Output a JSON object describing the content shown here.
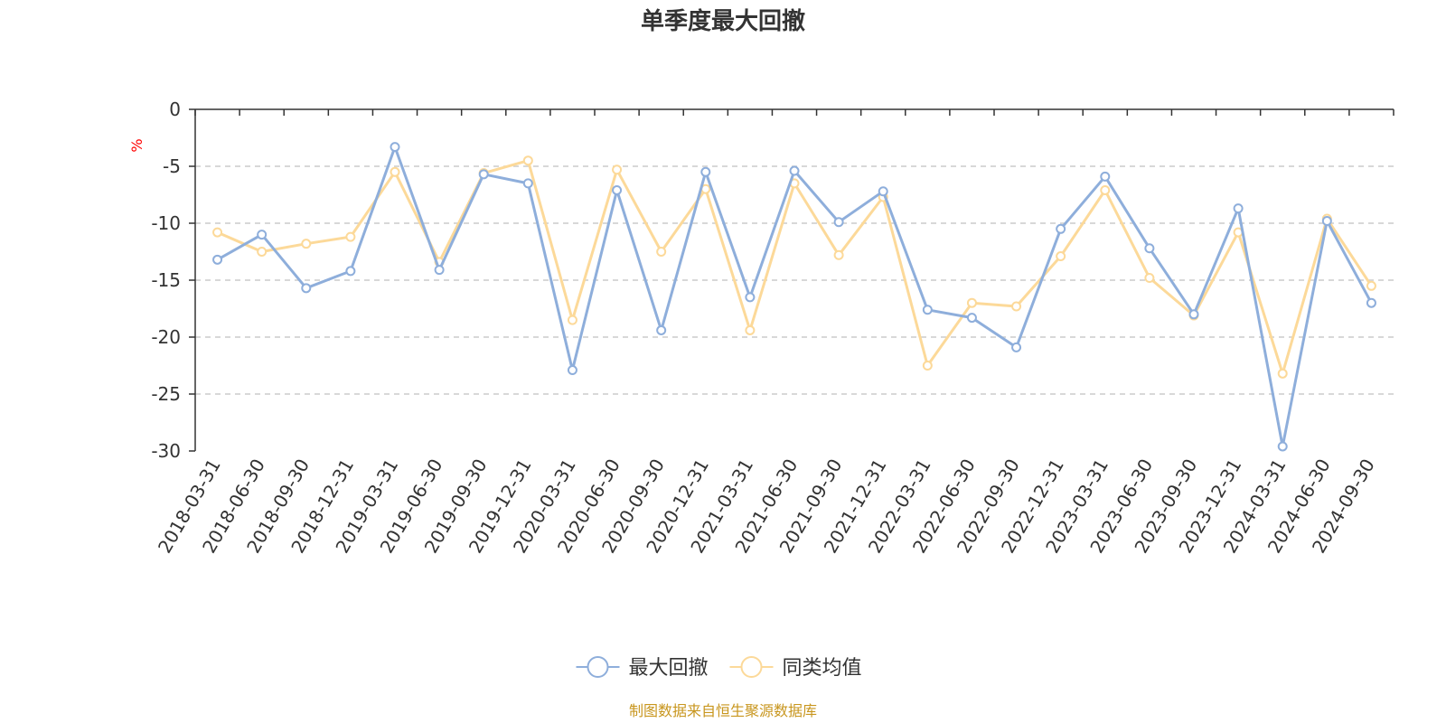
{
  "chart_data": {
    "type": "line",
    "title": "单季度最大回撤",
    "ylabel": "%",
    "ylim": [
      -30,
      0
    ],
    "yticks": [
      0,
      -5,
      -10,
      -15,
      -20,
      -25,
      -30
    ],
    "grid": true,
    "legend_position": "bottom",
    "categories": [
      "2018-03-31",
      "2018-06-30",
      "2018-09-30",
      "2018-12-31",
      "2019-03-31",
      "2019-06-30",
      "2019-09-30",
      "2019-12-31",
      "2020-03-31",
      "2020-06-30",
      "2020-09-30",
      "2020-12-31",
      "2021-03-31",
      "2021-06-30",
      "2021-09-30",
      "2021-12-31",
      "2022-03-31",
      "2022-06-30",
      "2022-09-30",
      "2022-12-31",
      "2023-03-31",
      "2023-06-30",
      "2023-09-30",
      "2023-12-31",
      "2024-03-31",
      "2024-06-30",
      "2024-09-30"
    ],
    "series": [
      {
        "name": "最大回撤",
        "color": "#8eaedb",
        "values": [
          -13.2,
          -11.0,
          -15.7,
          -14.2,
          -3.3,
          -14.1,
          -5.7,
          -6.5,
          -22.9,
          -7.1,
          -19.4,
          -5.5,
          -16.5,
          -5.4,
          -9.9,
          -7.2,
          -17.6,
          -18.3,
          -20.9,
          -10.5,
          -5.9,
          -12.2,
          -18.0,
          -8.7,
          -29.6,
          -9.8,
          -17.0
        ]
      },
      {
        "name": "同类均值",
        "color": "#fcd999",
        "values": [
          -10.8,
          -12.5,
          -11.8,
          -11.2,
          -5.5,
          -13.4,
          -5.6,
          -4.5,
          -18.5,
          -5.3,
          -12.5,
          -7.0,
          -19.4,
          -6.5,
          -12.8,
          -7.7,
          -22.5,
          -17.0,
          -17.3,
          -12.9,
          -7.1,
          -14.8,
          -18.1,
          -10.8,
          -23.2,
          -9.6,
          -15.5
        ]
      }
    ],
    "source": "制图数据来自恒生聚源数据库"
  }
}
